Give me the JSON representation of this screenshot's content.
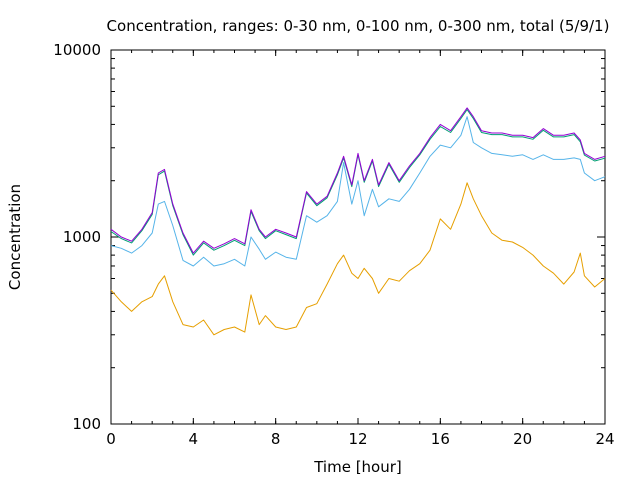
{
  "chart_data": {
    "type": "line",
    "title": "Concentration, ranges: 0-30 nm, 0-100 nm, 0-300 nm, total (5/9/1)",
    "xlabel": "Time [hour]",
    "ylabel": "Concentration",
    "xlim": [
      0,
      24
    ],
    "ylim": [
      100,
      10000
    ],
    "yscale": "log",
    "grid": false,
    "legend": "none",
    "xticks": [
      "0",
      "4",
      "8",
      "12",
      "16",
      "20",
      "24"
    ],
    "yticks": [
      "100",
      "1000",
      "10000"
    ],
    "x": [
      0,
      0.5,
      1,
      1.5,
      2,
      2.3,
      2.6,
      3,
      3.5,
      4,
      4.5,
      5,
      5.5,
      6,
      6.5,
      6.8,
      7.2,
      7.5,
      8,
      8.5,
      9,
      9.5,
      10,
      10.5,
      11,
      11.3,
      11.7,
      12,
      12.3,
      12.7,
      13,
      13.5,
      14,
      14.5,
      15,
      15.5,
      16,
      16.5,
      17,
      17.3,
      17.6,
      18,
      18.5,
      19,
      19.5,
      20,
      20.5,
      21,
      21.5,
      22,
      22.5,
      22.8,
      23,
      23.5,
      24
    ],
    "series": [
      {
        "color": "#9400d3",
        "values": [
          1100,
          1000,
          950,
          1100,
          1350,
          2200,
          2300,
          1500,
          1050,
          820,
          950,
          870,
          920,
          980,
          920,
          1400,
          1100,
          1000,
          1100,
          1050,
          1000,
          1750,
          1500,
          1650,
          2200,
          2700,
          1900,
          2800,
          2000,
          2600,
          1900,
          2500,
          2000,
          2400,
          2800,
          3400,
          4000,
          3700,
          4400,
          4900,
          4400,
          3700,
          3600,
          3600,
          3500,
          3500,
          3400,
          3800,
          3500,
          3500,
          3600,
          3300,
          2800,
          2600,
          2700
        ]
      },
      {
        "color": "#009e73",
        "values": [
          1070,
          980,
          930,
          1080,
          1320,
          2150,
          2250,
          1470,
          1030,
          800,
          930,
          850,
          900,
          960,
          900,
          1370,
          1080,
          980,
          1080,
          1030,
          980,
          1720,
          1470,
          1620,
          2150,
          2650,
          1860,
          2750,
          1960,
          2550,
          1860,
          2450,
          1960,
          2350,
          2750,
          3330,
          3900,
          3620,
          4300,
          4800,
          4300,
          3620,
          3530,
          3530,
          3430,
          3430,
          3330,
          3720,
          3430,
          3430,
          3530,
          3230,
          2740,
          2550,
          2640
        ]
      },
      {
        "color": "#56b4e9",
        "values": [
          900,
          870,
          820,
          900,
          1050,
          1500,
          1550,
          1150,
          750,
          700,
          780,
          700,
          720,
          760,
          700,
          1000,
          860,
          760,
          830,
          780,
          760,
          1300,
          1200,
          1300,
          1550,
          2500,
          1500,
          2000,
          1300,
          1800,
          1450,
          1600,
          1550,
          1800,
          2200,
          2700,
          3100,
          3000,
          3500,
          4400,
          3200,
          3000,
          2800,
          2750,
          2700,
          2750,
          2600,
          2750,
          2600,
          2600,
          2650,
          2600,
          2200,
          2000,
          2100
        ]
      },
      {
        "color": "#e69f00",
        "values": [
          520,
          450,
          400,
          450,
          480,
          560,
          620,
          450,
          340,
          330,
          360,
          300,
          320,
          330,
          310,
          490,
          340,
          380,
          330,
          320,
          330,
          420,
          440,
          560,
          720,
          800,
          640,
          600,
          680,
          600,
          500,
          600,
          580,
          660,
          720,
          850,
          1250,
          1100,
          1500,
          1950,
          1600,
          1300,
          1050,
          960,
          940,
          880,
          800,
          700,
          640,
          560,
          650,
          820,
          620,
          540,
          600
        ]
      }
    ]
  }
}
